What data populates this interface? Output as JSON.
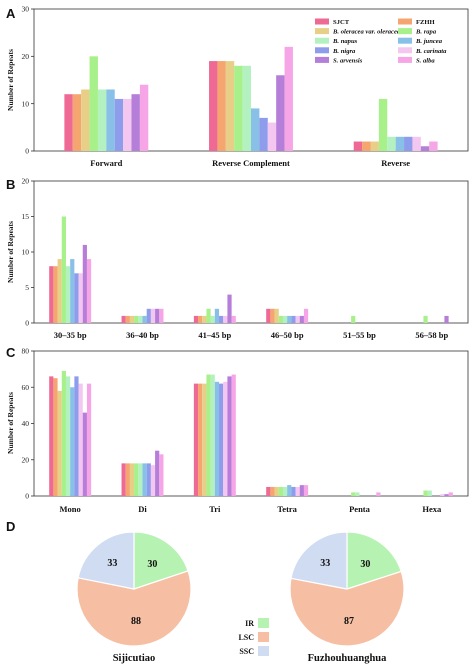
{
  "colors": {
    "SJCT": "#ee6a95",
    "FZHH": "#f5a570",
    "B. oleracea var. oleracea": "#e8cf88",
    "B. rapa": "#a8f08a",
    "B. napus": "#b3f2c0",
    "B. juncea": "#88c0e8",
    "B. nigra": "#8e9cec",
    "B. carinata": "#f3c7ef",
    "S. arvensis": "#b57ed8",
    "S. alba": "#f6a6e6",
    "IR": "#b6f2b2",
    "LSC": "#f6bfa3",
    "SSC": "#cfdcf2"
  },
  "legend": [
    {
      "label": "SJCT",
      "italic": false
    },
    {
      "label": "FZHH",
      "italic": false
    },
    {
      "label": "B. oleracea var. oleracea",
      "italic": true
    },
    {
      "label": "B. rapa",
      "italic": true
    },
    {
      "label": "B. napus",
      "italic": true
    },
    {
      "label": "B. juncea",
      "italic": true
    },
    {
      "label": "B. nigra",
      "italic": true
    },
    {
      "label": "B. carinata",
      "italic": true
    },
    {
      "label": "S. arvensis",
      "italic": true
    },
    {
      "label": "S. alba",
      "italic": true
    }
  ],
  "chart_data": [
    {
      "panel": "A",
      "type": "bar",
      "ylabel": "Number of Repeats",
      "ylim": [
        0,
        30
      ],
      "yticks": [
        0,
        10,
        20,
        30
      ],
      "categories": [
        "Forward",
        "Reverse Complement",
        "Reverse"
      ],
      "series": [
        {
          "name": "SJCT",
          "values": [
            12,
            19,
            2
          ]
        },
        {
          "name": "FZHH",
          "values": [
            12,
            19,
            2
          ]
        },
        {
          "name": "B. oleracea var. oleracea",
          "values": [
            13,
            19,
            2
          ]
        },
        {
          "name": "B. rapa",
          "values": [
            20,
            18,
            11
          ]
        },
        {
          "name": "B. napus",
          "values": [
            13,
            18,
            3
          ]
        },
        {
          "name": "B. juncea",
          "values": [
            13,
            9,
            3
          ]
        },
        {
          "name": "B. nigra",
          "values": [
            11,
            7,
            3
          ]
        },
        {
          "name": "B. carinata",
          "values": [
            11,
            6,
            3
          ]
        },
        {
          "name": "S. arvensis",
          "values": [
            12,
            16,
            1
          ]
        },
        {
          "name": "S. alba",
          "values": [
            14,
            22,
            2
          ]
        }
      ]
    },
    {
      "panel": "B",
      "type": "bar",
      "ylabel": "Number of Repeats",
      "ylim": [
        0,
        20
      ],
      "yticks": [
        0,
        5,
        10,
        15,
        20
      ],
      "categories": [
        "30–35 bp",
        "36–40 bp",
        "41–45 bp",
        "46–50 bp",
        "51–55 bp",
        "56–58 bp"
      ],
      "series": [
        {
          "name": "SJCT",
          "values": [
            8,
            1,
            1,
            2,
            0,
            0
          ]
        },
        {
          "name": "FZHH",
          "values": [
            8,
            1,
            1,
            2,
            0,
            0
          ]
        },
        {
          "name": "B. oleracea var. oleracea",
          "values": [
            9,
            1,
            1,
            2,
            0,
            0
          ]
        },
        {
          "name": "B. rapa",
          "values": [
            15,
            1,
            2,
            1,
            1,
            1
          ]
        },
        {
          "name": "B. napus",
          "values": [
            8,
            1,
            1,
            1,
            0,
            0
          ]
        },
        {
          "name": "B. juncea",
          "values": [
            9,
            1,
            2,
            1,
            0,
            0
          ]
        },
        {
          "name": "B. nigra",
          "values": [
            7,
            2,
            1,
            1,
            0,
            0
          ]
        },
        {
          "name": "B. carinata",
          "values": [
            7,
            2,
            1,
            1,
            0,
            0
          ]
        },
        {
          "name": "S. arvensis",
          "values": [
            11,
            2,
            4,
            1,
            0,
            1
          ]
        },
        {
          "name": "S. alba",
          "values": [
            9,
            2,
            1,
            2,
            0,
            0
          ]
        }
      ]
    },
    {
      "panel": "C",
      "type": "bar",
      "ylabel": "Number of Repeats",
      "ylim": [
        0,
        80
      ],
      "yticks": [
        0,
        20,
        40,
        60,
        80
      ],
      "categories": [
        "Mono",
        "Di",
        "Tri",
        "Tetra",
        "Penta",
        "Hexa"
      ],
      "series": [
        {
          "name": "SJCT",
          "values": [
            66,
            18,
            62,
            5,
            0,
            0
          ]
        },
        {
          "name": "FZHH",
          "values": [
            65,
            18,
            62,
            5,
            0,
            0
          ]
        },
        {
          "name": "B. oleracea var. oleracea",
          "values": [
            58,
            18,
            62,
            5,
            0,
            0
          ]
        },
        {
          "name": "B. rapa",
          "values": [
            69,
            18,
            67,
            5,
            2,
            3
          ]
        },
        {
          "name": "B. napus",
          "values": [
            66,
            18,
            67,
            5,
            2,
            3
          ]
        },
        {
          "name": "B. juncea",
          "values": [
            60,
            18,
            63,
            6,
            0,
            0
          ]
        },
        {
          "name": "B. nigra",
          "values": [
            66,
            18,
            62,
            5,
            0,
            0
          ]
        },
        {
          "name": "B. carinata",
          "values": [
            62,
            17,
            63,
            5,
            0,
            1
          ]
        },
        {
          "name": "S. arvensis",
          "values": [
            46,
            25,
            66,
            6,
            0,
            1
          ]
        },
        {
          "name": "S. alba",
          "values": [
            62,
            23,
            67,
            6,
            2,
            2
          ]
        }
      ]
    },
    {
      "panel": "D",
      "type": "pie",
      "slices": [
        "IR",
        "LSC",
        "SSC"
      ],
      "pies": [
        {
          "name": "Sijicutiao",
          "values": [
            30,
            88,
            33
          ]
        },
        {
          "name": "Fuzhouhuanghua",
          "values": [
            30,
            87,
            33
          ]
        }
      ]
    }
  ]
}
